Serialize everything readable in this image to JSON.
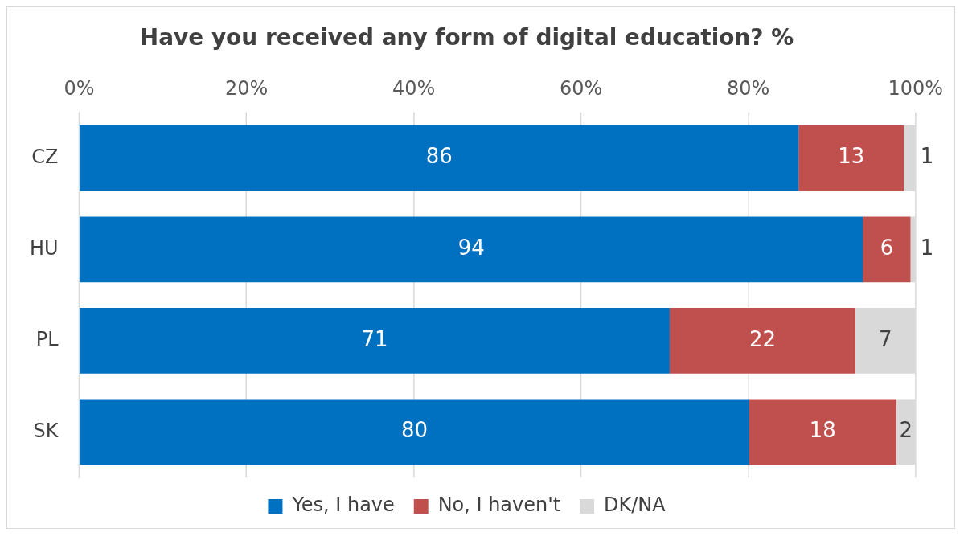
{
  "chart_data": {
    "type": "bar",
    "orientation": "horizontal",
    "stacked": true,
    "title": "Have you received any form of digital education? %",
    "categories": [
      "CZ",
      "HU",
      "PL",
      "SK"
    ],
    "series": [
      {
        "name": "Yes, I have",
        "color": "#0070c0",
        "values": [
          86,
          93.7,
          70.6,
          80.1
        ],
        "value_labels": [
          "86",
          "94",
          "71",
          "80"
        ]
      },
      {
        "name": "No, I haven't",
        "color": "#c0504d",
        "values": [
          12.6,
          5.7,
          22.2,
          17.6
        ],
        "value_labels": [
          "13",
          "6",
          "22",
          "18"
        ]
      },
      {
        "name": "DK/NA",
        "color": "#d9d9d9",
        "values": [
          1.4,
          0.6,
          7.2,
          2.3
        ],
        "value_labels": [
          "1",
          "1",
          "7",
          "2"
        ]
      }
    ],
    "xlim": [
      0,
      100
    ],
    "xticks": [
      {
        "value": 0,
        "label": "0%"
      },
      {
        "value": 20,
        "label": "20%"
      },
      {
        "value": 40,
        "label": "40%"
      },
      {
        "value": 60,
        "label": "60%"
      },
      {
        "value": 80,
        "label": "80%"
      },
      {
        "value": 100,
        "label": "100%"
      }
    ],
    "grid": "x",
    "legend": "bottom"
  }
}
